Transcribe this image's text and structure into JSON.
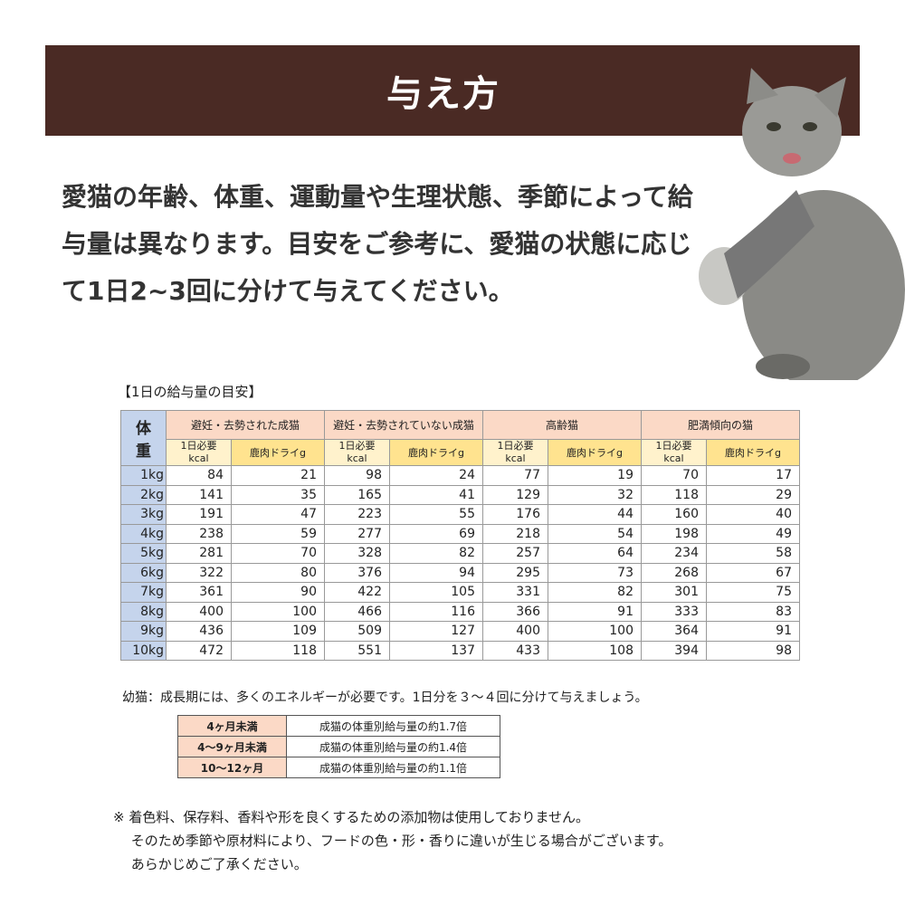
{
  "title": "与え方",
  "intro": "愛猫の年齢、体重、運動量や生理状態、季節によって給与量は異なります。目安をご参考に、愛猫の状態に応じて1日2~3回に分けて与えてください。",
  "table_caption": "【1日の給与量の目安】",
  "table": {
    "weight_header": "体重",
    "groups": [
      "避妊・去勢された成猫",
      "避妊・去勢されていない成猫",
      "高齢猫",
      "肥満傾向の猫"
    ],
    "sub_kcal": [
      "1日必要",
      "kcal"
    ],
    "sub_dry": "鹿肉ドライg",
    "rows": [
      [
        "1kg",
        "84",
        "21",
        "98",
        "24",
        "77",
        "19",
        "70",
        "17"
      ],
      [
        "2kg",
        "141",
        "35",
        "165",
        "41",
        "129",
        "32",
        "118",
        "29"
      ],
      [
        "3kg",
        "191",
        "47",
        "223",
        "55",
        "176",
        "44",
        "160",
        "40"
      ],
      [
        "4kg",
        "238",
        "59",
        "277",
        "69",
        "218",
        "54",
        "198",
        "49"
      ],
      [
        "5kg",
        "281",
        "70",
        "328",
        "82",
        "257",
        "64",
        "234",
        "58"
      ],
      [
        "6kg",
        "322",
        "80",
        "376",
        "94",
        "295",
        "73",
        "268",
        "67"
      ],
      [
        "7kg",
        "361",
        "90",
        "422",
        "105",
        "331",
        "82",
        "301",
        "75"
      ],
      [
        "8kg",
        "400",
        "100",
        "466",
        "116",
        "366",
        "91",
        "333",
        "83"
      ],
      [
        "9kg",
        "436",
        "109",
        "509",
        "127",
        "400",
        "100",
        "364",
        "91"
      ],
      [
        "10kg",
        "472",
        "118",
        "551",
        "137",
        "433",
        "108",
        "394",
        "98"
      ]
    ]
  },
  "kitten_note": "幼猫：成長期には、多くのエネルギーが必要です。1日分を３～４回に分けて与えましょう。",
  "kitten_table": [
    [
      "4ヶ月未満",
      "成猫の体重別給与量の約1.7倍"
    ],
    [
      "4～9ヶ月未満",
      "成猫の体重別給与量の約1.4倍"
    ],
    [
      "10～12ヶ月",
      "成猫の体重別給与量の約1.1倍"
    ]
  ],
  "footnote": [
    "※ 着色料、保存料、香料や形を良くするための添加物は使用しておりません。",
    "　 そのため季節や原材料により、フードの色・形・香りに違いが生じる場合がございます。",
    "　 あらかじめご了承ください。"
  ],
  "colors": {
    "banner": "#4a2a24",
    "group_header": "#fbd9c6",
    "kcal_header": "#fff2cc",
    "dry_header": "#ffe38f",
    "weight_col": "#c5d4ec"
  }
}
